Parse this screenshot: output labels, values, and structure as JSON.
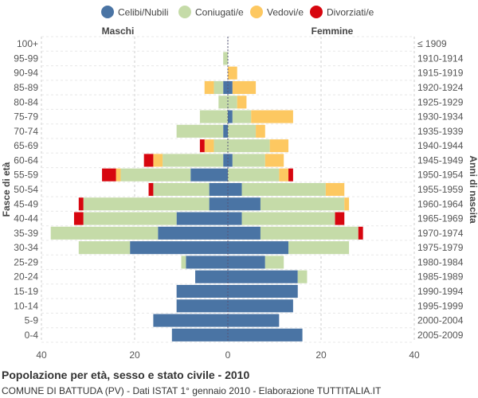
{
  "chart_data": {
    "type": "bar",
    "orientation": "horizontal",
    "layout": "population-pyramid",
    "title": "Popolazione per età, sesso e stato civile - 2010",
    "subtitle": "COMUNE DI BATTUDA (PV) - Dati ISTAT 1° gennaio 2010 - Elaborazione TUTTITALIA.IT",
    "left_header": "Maschi",
    "right_header": "Femmine",
    "ylabel_left": "Fasce di età",
    "ylabel_right": "Anni di nascita",
    "xlim": [
      -40,
      40
    ],
    "x_ticks": [
      -40,
      -20,
      0,
      20,
      40
    ],
    "x_tick_labels": [
      "40",
      "20",
      "0",
      "20",
      "40"
    ],
    "legend": [
      {
        "name": "Celibi/Nubili",
        "color": "#4a74a4"
      },
      {
        "name": "Coniugati/e",
        "color": "#c5dba8"
      },
      {
        "name": "Vedovi/e",
        "color": "#fdc861"
      },
      {
        "name": "Divorziati/e",
        "color": "#d7060f"
      }
    ],
    "age_groups": [
      "100+",
      "95-99",
      "90-94",
      "85-89",
      "80-84",
      "75-79",
      "70-74",
      "65-69",
      "60-64",
      "55-59",
      "50-54",
      "45-49",
      "40-44",
      "35-39",
      "30-34",
      "25-29",
      "20-24",
      "15-19",
      "10-14",
      "5-9",
      "0-4"
    ],
    "birth_years": [
      "≤ 1909",
      "1910-1914",
      "1915-1919",
      "1920-1924",
      "1925-1929",
      "1930-1934",
      "1935-1939",
      "1940-1944",
      "1945-1949",
      "1950-1954",
      "1955-1959",
      "1960-1964",
      "1965-1969",
      "1970-1974",
      "1975-1979",
      "1980-1984",
      "1985-1989",
      "1990-1994",
      "1995-1999",
      "2000-2004",
      "2005-2009"
    ],
    "males": {
      "Celibi/Nubili": [
        0,
        0,
        0,
        1,
        0,
        0,
        1,
        0,
        1,
        8,
        4,
        4,
        11,
        15,
        21,
        9,
        7,
        11,
        11,
        16,
        12
      ],
      "Coniugati/e": [
        0,
        1,
        0,
        2,
        2,
        6,
        10,
        3,
        13,
        15,
        12,
        27,
        20,
        23,
        11,
        1,
        0,
        0,
        0,
        0,
        0
      ],
      "Vedovi/e": [
        0,
        0,
        0,
        2,
        0,
        0,
        0,
        2,
        2,
        1,
        0,
        0,
        0,
        0,
        0,
        0,
        0,
        0,
        0,
        0,
        0
      ],
      "Divorziati/e": [
        0,
        0,
        0,
        0,
        0,
        0,
        0,
        1,
        2,
        3,
        1,
        1,
        2,
        0,
        0,
        0,
        0,
        0,
        0,
        0,
        0
      ]
    },
    "females": {
      "Celibi/Nubili": [
        0,
        0,
        0,
        1,
        0,
        1,
        0,
        0,
        1,
        0,
        3,
        7,
        3,
        7,
        13,
        8,
        15,
        15,
        14,
        11,
        16
      ],
      "Coniugati/e": [
        0,
        0,
        0,
        0,
        2,
        4,
        6,
        9,
        7,
        11,
        18,
        18,
        20,
        21,
        13,
        4,
        2,
        0,
        0,
        0,
        0
      ],
      "Vedovi/e": [
        0,
        0,
        2,
        5,
        2,
        9,
        2,
        4,
        4,
        2,
        4,
        1,
        0,
        0,
        0,
        0,
        0,
        0,
        0,
        0,
        0
      ],
      "Divorziati/e": [
        0,
        0,
        0,
        0,
        0,
        0,
        0,
        0,
        0,
        1,
        0,
        0,
        2,
        1,
        0,
        0,
        0,
        0,
        0,
        0,
        0
      ]
    }
  }
}
